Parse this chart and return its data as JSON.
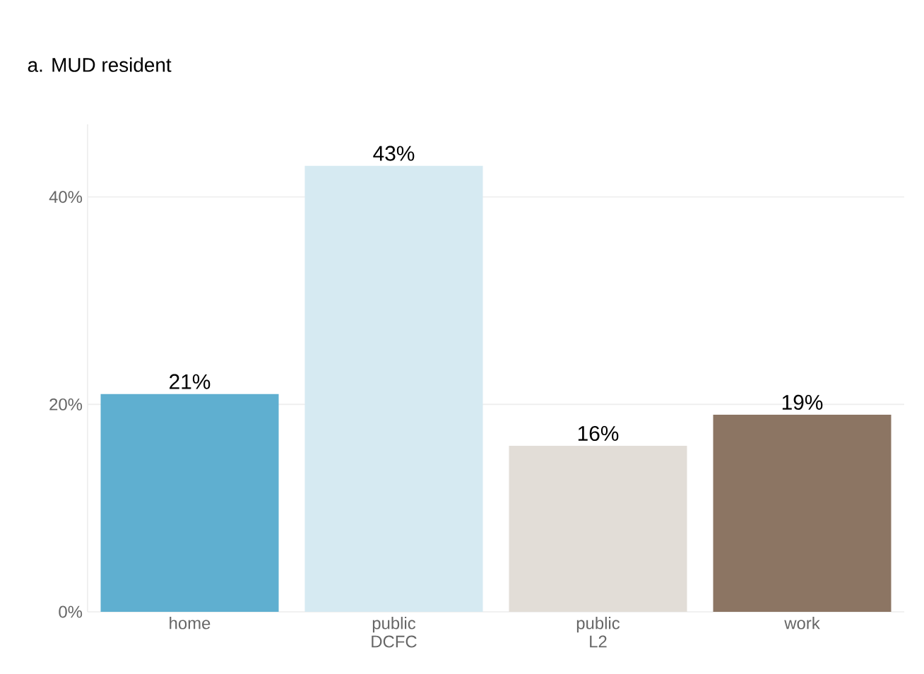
{
  "chart_data": {
    "type": "bar",
    "title": "a. MUD resident",
    "categories": [
      "home",
      "public DCFC",
      "public L2",
      "work"
    ],
    "values": [
      21,
      43,
      16,
      19
    ],
    "colors": [
      "#5fafd0",
      "#d6eaf2",
      "#e2ddd7",
      "#8c7563"
    ],
    "value_labels": [
      "21%",
      "43%",
      "16%",
      "19%"
    ],
    "ylim": [
      0,
      47
    ],
    "yticks": [
      {
        "value": 0,
        "label": "0%"
      },
      {
        "value": 20,
        "label": "20%"
      },
      {
        "value": 40,
        "label": "40%"
      }
    ],
    "grid": "y"
  }
}
